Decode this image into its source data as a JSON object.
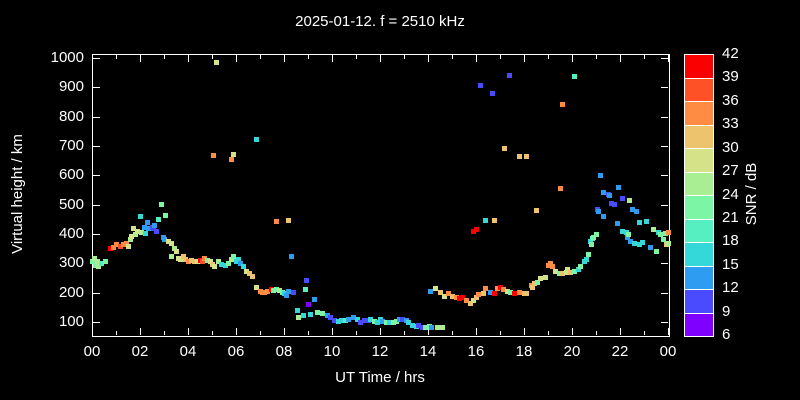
{
  "title": "2025-01-12. f = 2510 kHz",
  "colors": {
    "background": "#000000",
    "foreground": "#ffffff"
  },
  "chart_data": {
    "type": "scatter",
    "title": "2025-01-12. f = 2510 kHz",
    "xlabel": "UT Time / hrs",
    "ylabel": "Virtual height / km",
    "colorbar_label": "SNR / dB",
    "grid": false,
    "legend_position": "right-colorbar",
    "x_range_hours": [
      0,
      24
    ],
    "x_major_tick_hours": [
      0,
      2,
      4,
      6,
      8,
      10,
      12,
      14,
      16,
      18,
      20,
      22,
      24
    ],
    "x_tick_labels": [
      "00",
      "02",
      "04",
      "06",
      "08",
      "10",
      "12",
      "14",
      "16",
      "18",
      "20",
      "22",
      "00"
    ],
    "x_minor_tick_every_hours": 1,
    "y_range_km": [
      56,
      1014
    ],
    "y_ticks_km": [
      100,
      200,
      300,
      400,
      500,
      600,
      700,
      800,
      900,
      1000
    ],
    "colorbar": {
      "min": 6,
      "max": 42,
      "step": 3,
      "tick_labels": [
        "6",
        "9",
        "12",
        "15",
        "18",
        "21",
        "24",
        "27",
        "30",
        "33",
        "36",
        "39",
        "42"
      ],
      "segment_colors_bottom_to_top": [
        "#7F00FF",
        "#4A4AFF",
        "#2E9CF0",
        "#35D8D8",
        "#55EFC2",
        "#7CF5A4",
        "#AAEE94",
        "#D5E288",
        "#EEC36E",
        "#FF8C42",
        "#FF5026",
        "#FA0000"
      ]
    },
    "points_hour_km_snr": [
      [
        0.03,
        305,
        22
      ],
      [
        0.1,
        318,
        25
      ],
      [
        0.15,
        294,
        22
      ],
      [
        0.22,
        305,
        25
      ],
      [
        0.28,
        288,
        25
      ],
      [
        0.4,
        301,
        19
      ],
      [
        0.55,
        308,
        22
      ],
      [
        0.75,
        352,
        40
      ],
      [
        0.9,
        356,
        34
      ],
      [
        1.0,
        363,
        34
      ],
      [
        1.17,
        359,
        37
      ],
      [
        1.3,
        366,
        34
      ],
      [
        1.42,
        369,
        34
      ],
      [
        1.5,
        359,
        28
      ],
      [
        1.6,
        380,
        25
      ],
      [
        1.63,
        393,
        28
      ],
      [
        1.72,
        420,
        28
      ],
      [
        1.8,
        400,
        25
      ],
      [
        1.9,
        410,
        28
      ],
      [
        2.04,
        461,
        16
      ],
      [
        2.08,
        407,
        25
      ],
      [
        2.17,
        424,
        13
      ],
      [
        2.22,
        403,
        16
      ],
      [
        2.3,
        441,
        13
      ],
      [
        2.35,
        420,
        13
      ],
      [
        2.5,
        424,
        10
      ],
      [
        2.58,
        420,
        9
      ],
      [
        2.62,
        431,
        13
      ],
      [
        2.7,
        410,
        10
      ],
      [
        2.75,
        451,
        19
      ],
      [
        2.88,
        502,
        22
      ],
      [
        2.96,
        390,
        13
      ],
      [
        3.04,
        380,
        13
      ],
      [
        3.06,
        465,
        22
      ],
      [
        3.2,
        376,
        28
      ],
      [
        3.3,
        369,
        28
      ],
      [
        3.33,
        322,
        25
      ],
      [
        3.42,
        352,
        25
      ],
      [
        3.5,
        339,
        28
      ],
      [
        3.6,
        318,
        28
      ],
      [
        3.7,
        315,
        28
      ],
      [
        3.8,
        322,
        31
      ],
      [
        3.9,
        315,
        31
      ],
      [
        4.04,
        308,
        34
      ],
      [
        4.13,
        311,
        31
      ],
      [
        4.25,
        308,
        31
      ],
      [
        4.4,
        308,
        28
      ],
      [
        4.54,
        311,
        40
      ],
      [
        4.62,
        305,
        37
      ],
      [
        4.7,
        318,
        34
      ],
      [
        4.83,
        311,
        22
      ],
      [
        4.95,
        308,
        28
      ],
      [
        5.04,
        298,
        31
      ],
      [
        5.12,
        291,
        28
      ],
      [
        5.25,
        305,
        25
      ],
      [
        5.4,
        298,
        16
      ],
      [
        5.55,
        294,
        16
      ],
      [
        5.67,
        301,
        22
      ],
      [
        5.8,
        315,
        25
      ],
      [
        5.9,
        322,
        22
      ],
      [
        6.04,
        308,
        16
      ],
      [
        6.12,
        315,
        16
      ],
      [
        5.05,
        669,
        34
      ],
      [
        5.2,
        986,
        28
      ],
      [
        5.8,
        656,
        34
      ],
      [
        5.9,
        673,
        28
      ],
      [
        6.85,
        724,
        16
      ],
      [
        6.17,
        301,
        13
      ],
      [
        6.3,
        288,
        16
      ],
      [
        6.45,
        274,
        28
      ],
      [
        6.55,
        267,
        31
      ],
      [
        6.67,
        257,
        31
      ],
      [
        6.87,
        219,
        28
      ],
      [
        7.0,
        206,
        34
      ],
      [
        7.1,
        202,
        34
      ],
      [
        7.2,
        202,
        34
      ],
      [
        7.33,
        206,
        34
      ],
      [
        7.46,
        212,
        40
      ],
      [
        7.58,
        209,
        22
      ],
      [
        7.7,
        212,
        22
      ],
      [
        7.83,
        209,
        25
      ],
      [
        7.95,
        202,
        22
      ],
      [
        8.04,
        199,
        16
      ],
      [
        8.12,
        192,
        13
      ],
      [
        7.7,
        444,
        34
      ],
      [
        8.17,
        448,
        31
      ],
      [
        8.3,
        325,
        13
      ],
      [
        8.92,
        243,
        10
      ],
      [
        8.2,
        206,
        13
      ],
      [
        8.4,
        202,
        10
      ],
      [
        8.58,
        138,
        16
      ],
      [
        8.62,
        117,
        25
      ],
      [
        8.8,
        124,
        16
      ],
      [
        8.9,
        212,
        19
      ],
      [
        9.0,
        161,
        8
      ],
      [
        9.1,
        127,
        16
      ],
      [
        9.25,
        178,
        13
      ],
      [
        9.4,
        134,
        22
      ],
      [
        9.6,
        131,
        22
      ],
      [
        9.8,
        124,
        13
      ],
      [
        9.95,
        114,
        10
      ],
      [
        10.1,
        107,
        10
      ],
      [
        10.25,
        103,
        16
      ],
      [
        10.4,
        107,
        16
      ],
      [
        10.55,
        107,
        19
      ],
      [
        10.7,
        110,
        13
      ],
      [
        10.9,
        114,
        13
      ],
      [
        11.05,
        110,
        16
      ],
      [
        11.2,
        100,
        10
      ],
      [
        11.35,
        107,
        10
      ],
      [
        11.5,
        107,
        10
      ],
      [
        11.6,
        110,
        16
      ],
      [
        11.75,
        103,
        22
      ],
      [
        11.9,
        100,
        16
      ],
      [
        12.0,
        110,
        16
      ],
      [
        12.1,
        103,
        13
      ],
      [
        12.25,
        97,
        22
      ],
      [
        12.4,
        100,
        16
      ],
      [
        12.55,
        97,
        22
      ],
      [
        12.7,
        103,
        22
      ],
      [
        12.8,
        110,
        13
      ],
      [
        12.95,
        110,
        10
      ],
      [
        13.1,
        107,
        13
      ],
      [
        13.2,
        100,
        16
      ],
      [
        13.35,
        90,
        16
      ],
      [
        13.5,
        86,
        16
      ],
      [
        13.6,
        90,
        10
      ],
      [
        13.75,
        83,
        10
      ],
      [
        13.9,
        83,
        22
      ],
      [
        14.05,
        86,
        22
      ],
      [
        14.15,
        83,
        13
      ],
      [
        14.4,
        83,
        25
      ],
      [
        14.6,
        80,
        25
      ],
      [
        14.1,
        206,
        13
      ],
      [
        14.3,
        216,
        28
      ],
      [
        14.5,
        202,
        31
      ],
      [
        14.7,
        188,
        28
      ],
      [
        14.85,
        199,
        34
      ],
      [
        15.0,
        188,
        31
      ],
      [
        15.17,
        185,
        34
      ],
      [
        15.3,
        182,
        40
      ],
      [
        15.45,
        185,
        40
      ],
      [
        15.6,
        175,
        34
      ],
      [
        15.75,
        165,
        31
      ],
      [
        15.9,
        172,
        28
      ],
      [
        16.0,
        185,
        31
      ],
      [
        16.1,
        195,
        34
      ],
      [
        16.3,
        199,
        31
      ],
      [
        16.4,
        216,
        34
      ],
      [
        16.6,
        202,
        13
      ],
      [
        16.75,
        199,
        40
      ],
      [
        16.9,
        216,
        34
      ],
      [
        17.0,
        219,
        40
      ],
      [
        17.15,
        212,
        34
      ],
      [
        17.3,
        206,
        28
      ],
      [
        17.45,
        202,
        22
      ],
      [
        17.6,
        199,
        40
      ],
      [
        17.8,
        202,
        34
      ],
      [
        18.0,
        199,
        31
      ],
      [
        18.1,
        199,
        31
      ],
      [
        15.9,
        410,
        40
      ],
      [
        16.04,
        417,
        40
      ],
      [
        16.2,
        908,
        10
      ],
      [
        16.4,
        448,
        16
      ],
      [
        16.7,
        881,
        10
      ],
      [
        16.75,
        448,
        31
      ],
      [
        17.2,
        693,
        31
      ],
      [
        17.4,
        942,
        10
      ],
      [
        17.8,
        666,
        31
      ],
      [
        18.1,
        666,
        31
      ],
      [
        18.5,
        482,
        31
      ],
      [
        19.5,
        557,
        34
      ],
      [
        19.6,
        843,
        34
      ],
      [
        20.1,
        938,
        19
      ],
      [
        21.2,
        601,
        13
      ],
      [
        18.3,
        226,
        34
      ],
      [
        18.37,
        219,
        31
      ],
      [
        18.45,
        233,
        31
      ],
      [
        18.55,
        236,
        22
      ],
      [
        18.7,
        247,
        28
      ],
      [
        18.9,
        253,
        28
      ],
      [
        19.0,
        294,
        34
      ],
      [
        19.1,
        301,
        34
      ],
      [
        19.2,
        288,
        34
      ],
      [
        19.33,
        274,
        28
      ],
      [
        19.46,
        267,
        22
      ],
      [
        19.6,
        264,
        31
      ],
      [
        19.75,
        270,
        28
      ],
      [
        19.83,
        281,
        28
      ],
      [
        19.95,
        270,
        31
      ],
      [
        20.1,
        274,
        22
      ],
      [
        20.25,
        281,
        16
      ],
      [
        20.37,
        288,
        22
      ],
      [
        20.5,
        305,
        16
      ],
      [
        20.6,
        315,
        16
      ],
      [
        20.7,
        332,
        22
      ],
      [
        20.75,
        376,
        16
      ],
      [
        20.8,
        363,
        22
      ],
      [
        20.85,
        386,
        19
      ],
      [
        20.9,
        390,
        22
      ],
      [
        21.0,
        397,
        22
      ],
      [
        21.05,
        485,
        10
      ],
      [
        21.1,
        478,
        13
      ],
      [
        21.3,
        461,
        13
      ],
      [
        21.3,
        543,
        13
      ],
      [
        21.5,
        536,
        10
      ],
      [
        21.55,
        533,
        13
      ],
      [
        21.65,
        506,
        10
      ],
      [
        21.75,
        502,
        10
      ],
      [
        21.9,
        437,
        13
      ],
      [
        21.95,
        560,
        13
      ],
      [
        22.1,
        523,
        10
      ],
      [
        22.1,
        410,
        16
      ],
      [
        22.25,
        407,
        16
      ],
      [
        22.3,
        390,
        13
      ],
      [
        22.35,
        397,
        22
      ],
      [
        22.4,
        513,
        25
      ],
      [
        22.45,
        376,
        13
      ],
      [
        22.5,
        485,
        13
      ],
      [
        22.6,
        369,
        16
      ],
      [
        22.7,
        478,
        13
      ],
      [
        22.8,
        438,
        16
      ],
      [
        22.8,
        366,
        16
      ],
      [
        22.95,
        373,
        16
      ],
      [
        23.1,
        444,
        16
      ],
      [
        23.25,
        356,
        13
      ],
      [
        23.4,
        417,
        25
      ],
      [
        23.5,
        339,
        22
      ],
      [
        23.6,
        407,
        16
      ],
      [
        23.7,
        400,
        22
      ],
      [
        23.8,
        380,
        22
      ],
      [
        23.9,
        403,
        22
      ],
      [
        23.95,
        366,
        31
      ],
      [
        24.0,
        369,
        25
      ],
      [
        24.0,
        407,
        34
      ]
    ]
  }
}
